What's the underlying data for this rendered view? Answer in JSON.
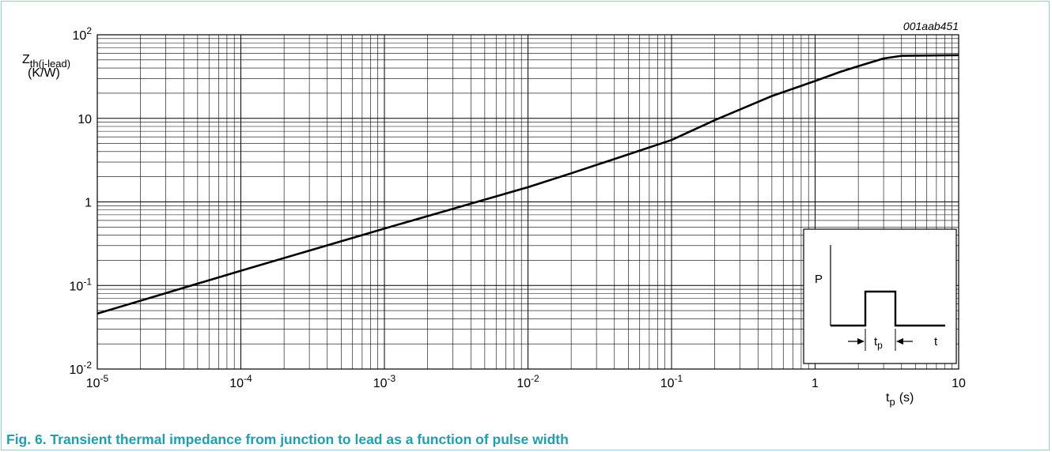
{
  "chart_data": {
    "type": "line",
    "id_label": "001aab451",
    "ylabel_main": "Z",
    "ylabel_sub": "th(j-lead)",
    "ylabel_unit": "(K/W)",
    "xlabel_main": "t",
    "xlabel_sub": "p",
    "xlabel_unit": "(s)",
    "xscale": "log",
    "yscale": "log",
    "xlim": [
      1e-05,
      10
    ],
    "ylim": [
      0.01,
      100
    ],
    "grid": true,
    "x_ticks": [
      {
        "base": "10",
        "exp": "-5"
      },
      {
        "base": "10",
        "exp": "-4"
      },
      {
        "base": "10",
        "exp": "-3"
      },
      {
        "base": "10",
        "exp": "-2"
      },
      {
        "base": "10",
        "exp": "-1"
      },
      {
        "base": "1",
        "exp": ""
      },
      {
        "base": "10",
        "exp": ""
      }
    ],
    "y_ticks": [
      {
        "base": "10",
        "exp": "-2"
      },
      {
        "base": "10",
        "exp": "-1"
      },
      {
        "base": "1",
        "exp": ""
      },
      {
        "base": "10",
        "exp": ""
      },
      {
        "base": "10",
        "exp": "2"
      }
    ],
    "series": [
      {
        "x": [
          1e-05,
          0.0001,
          0.001,
          0.01,
          0.02,
          0.05,
          0.1,
          0.2,
          0.5,
          1,
          1.5,
          2,
          3,
          4,
          10
        ],
        "y": [
          0.046,
          0.15,
          0.48,
          1.5,
          2.2,
          3.7,
          5.5,
          9.5,
          18.5,
          28,
          36,
          42,
          52,
          56,
          57
        ]
      }
    ],
    "inset": {
      "y_label": "P",
      "x_label": "t",
      "pulse_label_main": "t",
      "pulse_label_sub": "p"
    }
  },
  "caption": "Fig. 6. Transient thermal impedance from junction to lead as a function of pulse width"
}
